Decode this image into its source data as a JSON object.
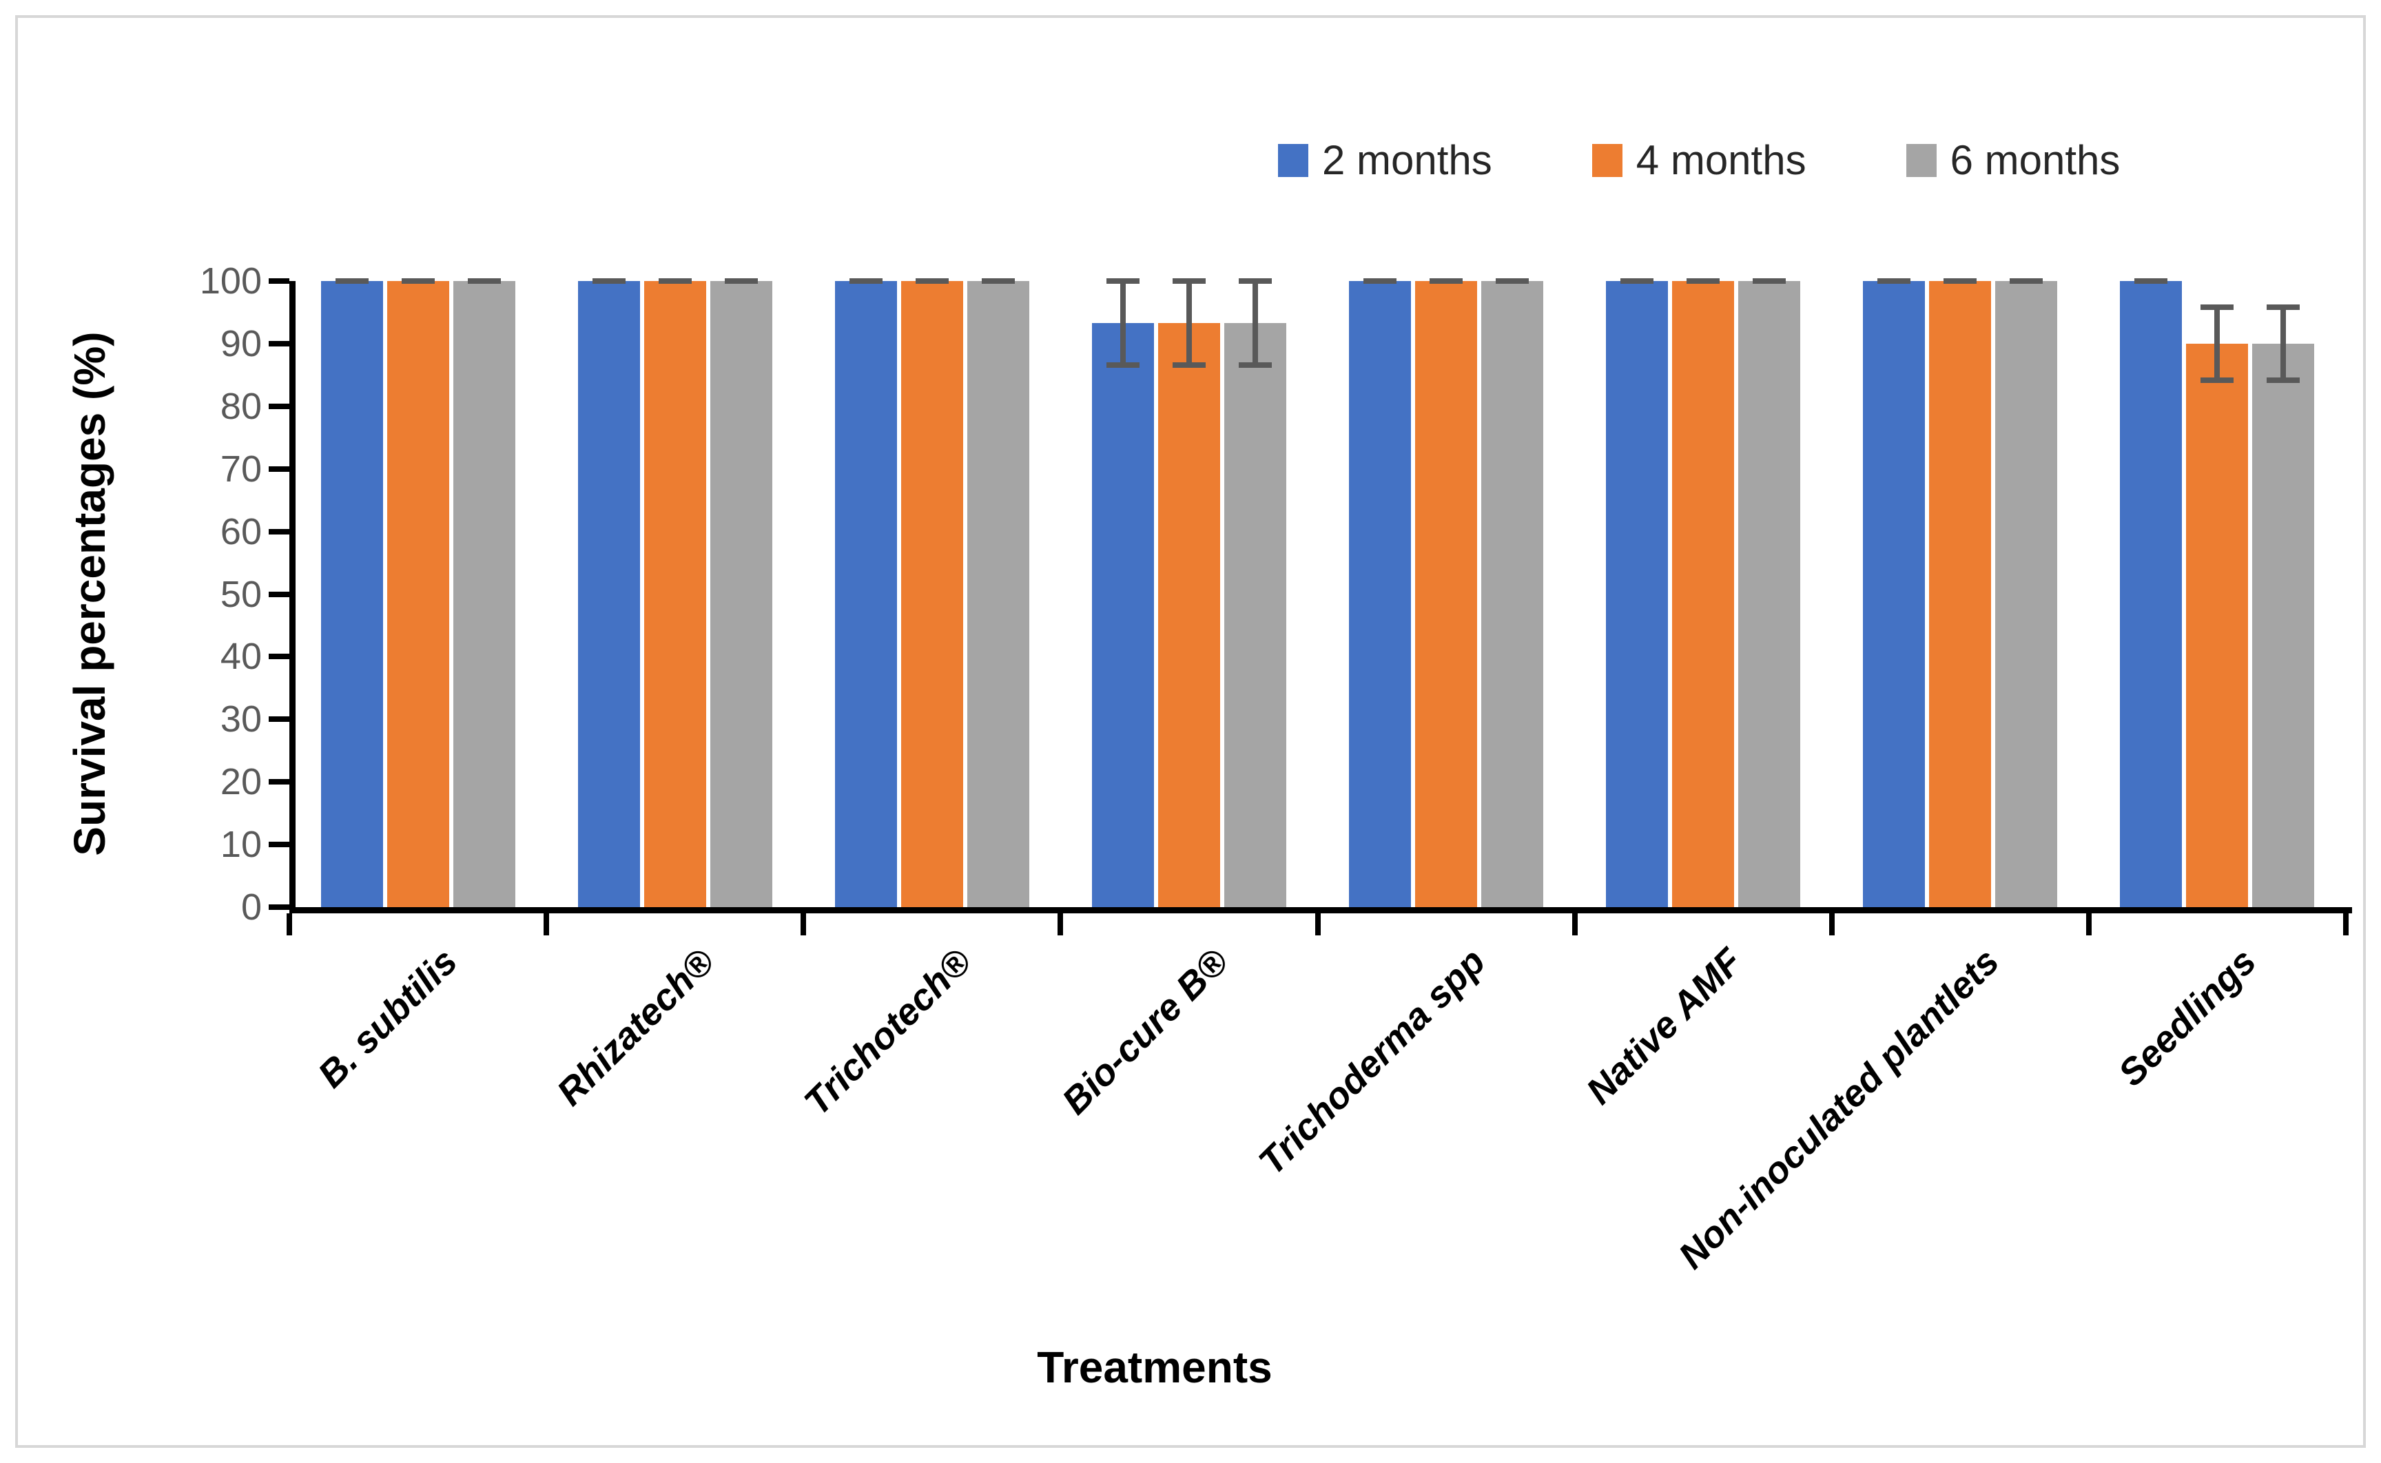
{
  "chart_data": {
    "type": "bar",
    "title": "",
    "xlabel": "Treatments",
    "ylabel": "Survival percentages (%)",
    "ylim": [
      0,
      100
    ],
    "yticks": [
      0,
      10,
      20,
      30,
      40,
      50,
      60,
      70,
      80,
      90,
      100
    ],
    "grid": false,
    "legend_position": "top-right",
    "categories": [
      "B. subtilis",
      "Rhizatech®",
      "Trichotech®",
      "Bio-cure B®",
      "Trichoderma spp",
      "Native AMF",
      "Non-inoculated plantlets",
      "Seedlings"
    ],
    "series": [
      {
        "name": "2 months",
        "color": "#4472C4",
        "values": [
          100,
          100,
          100,
          93.3,
          100,
          100,
          100,
          100
        ],
        "errors": [
          0,
          0,
          0,
          6.7,
          0,
          0,
          0,
          0
        ]
      },
      {
        "name": "4 months",
        "color": "#ED7D31",
        "values": [
          100,
          100,
          100,
          93.3,
          100,
          100,
          100,
          90
        ],
        "errors": [
          0,
          0,
          0,
          6.7,
          0,
          0,
          0,
          5.8
        ]
      },
      {
        "name": "6 months",
        "color": "#A5A5A5",
        "values": [
          100,
          100,
          100,
          93.3,
          100,
          100,
          100,
          90
        ],
        "errors": [
          0,
          0,
          0,
          6.7,
          0,
          0,
          0,
          5.8
        ]
      }
    ],
    "error_bar_color": "#595959",
    "axis_color": "#000000",
    "tick_label_color": "#595959"
  }
}
